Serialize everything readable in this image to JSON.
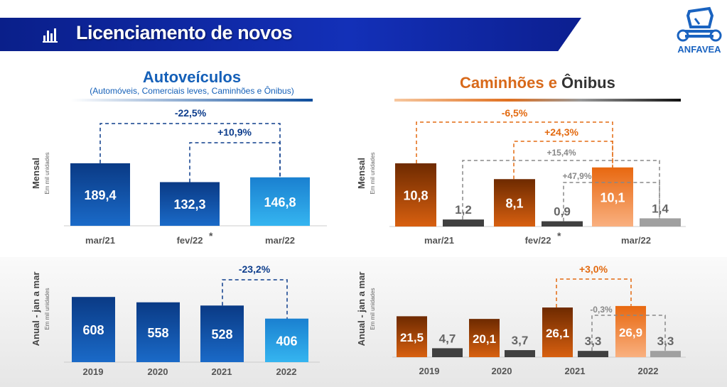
{
  "header": {
    "title": "Licenciamento de novos",
    "logo_text": "ANFAVEA",
    "icon": "bar-chart-icon"
  },
  "colors": {
    "banner": "#1330b8",
    "blue_dark": "#0d3d8c",
    "blue_light": "#1a9be0",
    "orange_dark": "#7a3000",
    "orange": "#e36a10",
    "orange_light": "#f7a55a",
    "gray_dark": "#404040",
    "gray_light": "#a0a0a0"
  },
  "left": {
    "title": "Autoveículos",
    "subtitle": "(Automóveis, Comerciais leves, Caminhões e Ônibus)"
  },
  "right": {
    "title_part1": "Caminhões e ",
    "title_part2": "Ônibus"
  },
  "chart_data": [
    {
      "type": "bar",
      "id": "auto-mensal",
      "ylabel": "Mensal",
      "yunit": "Em mil unidades",
      "categories": [
        "mar/21",
        "fev/22",
        "mar/22"
      ],
      "footnote_marks": [
        "",
        "*",
        ""
      ],
      "series": [
        {
          "values": [
            189.4,
            132.3,
            146.8
          ]
        }
      ],
      "value_labels": [
        "189,4",
        "132,3",
        "146,8"
      ],
      "annotations": [
        {
          "label": "-22,5%",
          "from": "mar/21",
          "to": "mar/22"
        },
        {
          "label": "+10,9%",
          "from": "fev/22",
          "to": "mar/22"
        }
      ]
    },
    {
      "type": "bar",
      "id": "auto-anual",
      "ylabel": "Anual - jan a mar",
      "yunit": "Em mil unidades",
      "categories": [
        "2019",
        "2020",
        "2021",
        "2022"
      ],
      "series": [
        {
          "values": [
            608,
            558,
            528,
            406
          ]
        }
      ],
      "value_labels": [
        "608",
        "558",
        "528",
        "406"
      ],
      "annotations": [
        {
          "label": "-23,2%",
          "from": "2021",
          "to": "2022"
        }
      ]
    },
    {
      "type": "bar",
      "id": "cam-oni-mensal",
      "ylabel": "Mensal",
      "yunit": "Em mil unidades",
      "categories": [
        "mar/21",
        "fev/22",
        "mar/22"
      ],
      "footnote_marks": [
        "",
        "*",
        ""
      ],
      "series": [
        {
          "name": "Caminhões",
          "values": [
            10.8,
            8.1,
            10.1
          ],
          "labels": [
            "10,8",
            "8,1",
            "10,1"
          ]
        },
        {
          "name": "Ônibus",
          "values": [
            1.2,
            0.9,
            1.4
          ],
          "labels": [
            "1,2",
            "0,9",
            "1,4"
          ]
        }
      ],
      "annotations": [
        {
          "label": "-6,5%",
          "series": "Caminhões",
          "from": "mar/21",
          "to": "mar/22"
        },
        {
          "label": "+24,3%",
          "series": "Caminhões",
          "from": "fev/22",
          "to": "mar/22"
        },
        {
          "label": "+15,4%",
          "series": "Ônibus",
          "from": "mar/21",
          "to": "mar/22"
        },
        {
          "label": "+47,9%",
          "series": "Ônibus",
          "from": "fev/22",
          "to": "mar/22"
        }
      ]
    },
    {
      "type": "bar",
      "id": "cam-oni-anual",
      "ylabel": "Anual - jan a mar",
      "yunit": "Em mil unidades",
      "categories": [
        "2019",
        "2020",
        "2021",
        "2022"
      ],
      "series": [
        {
          "name": "Caminhões",
          "values": [
            21.5,
            20.1,
            26.1,
            26.9
          ],
          "labels": [
            "21,5",
            "20,1",
            "26,1",
            "26,9"
          ]
        },
        {
          "name": "Ônibus",
          "values": [
            4.7,
            3.7,
            3.3,
            3.3
          ],
          "labels": [
            "4,7",
            "3,7",
            "3,3",
            "3,3"
          ]
        }
      ],
      "annotations": [
        {
          "label": "+3,0%",
          "series": "Caminhões",
          "from": "2021",
          "to": "2022"
        },
        {
          "label": "-0,3%",
          "series": "Ônibus",
          "from": "2021",
          "to": "2022"
        }
      ]
    }
  ]
}
